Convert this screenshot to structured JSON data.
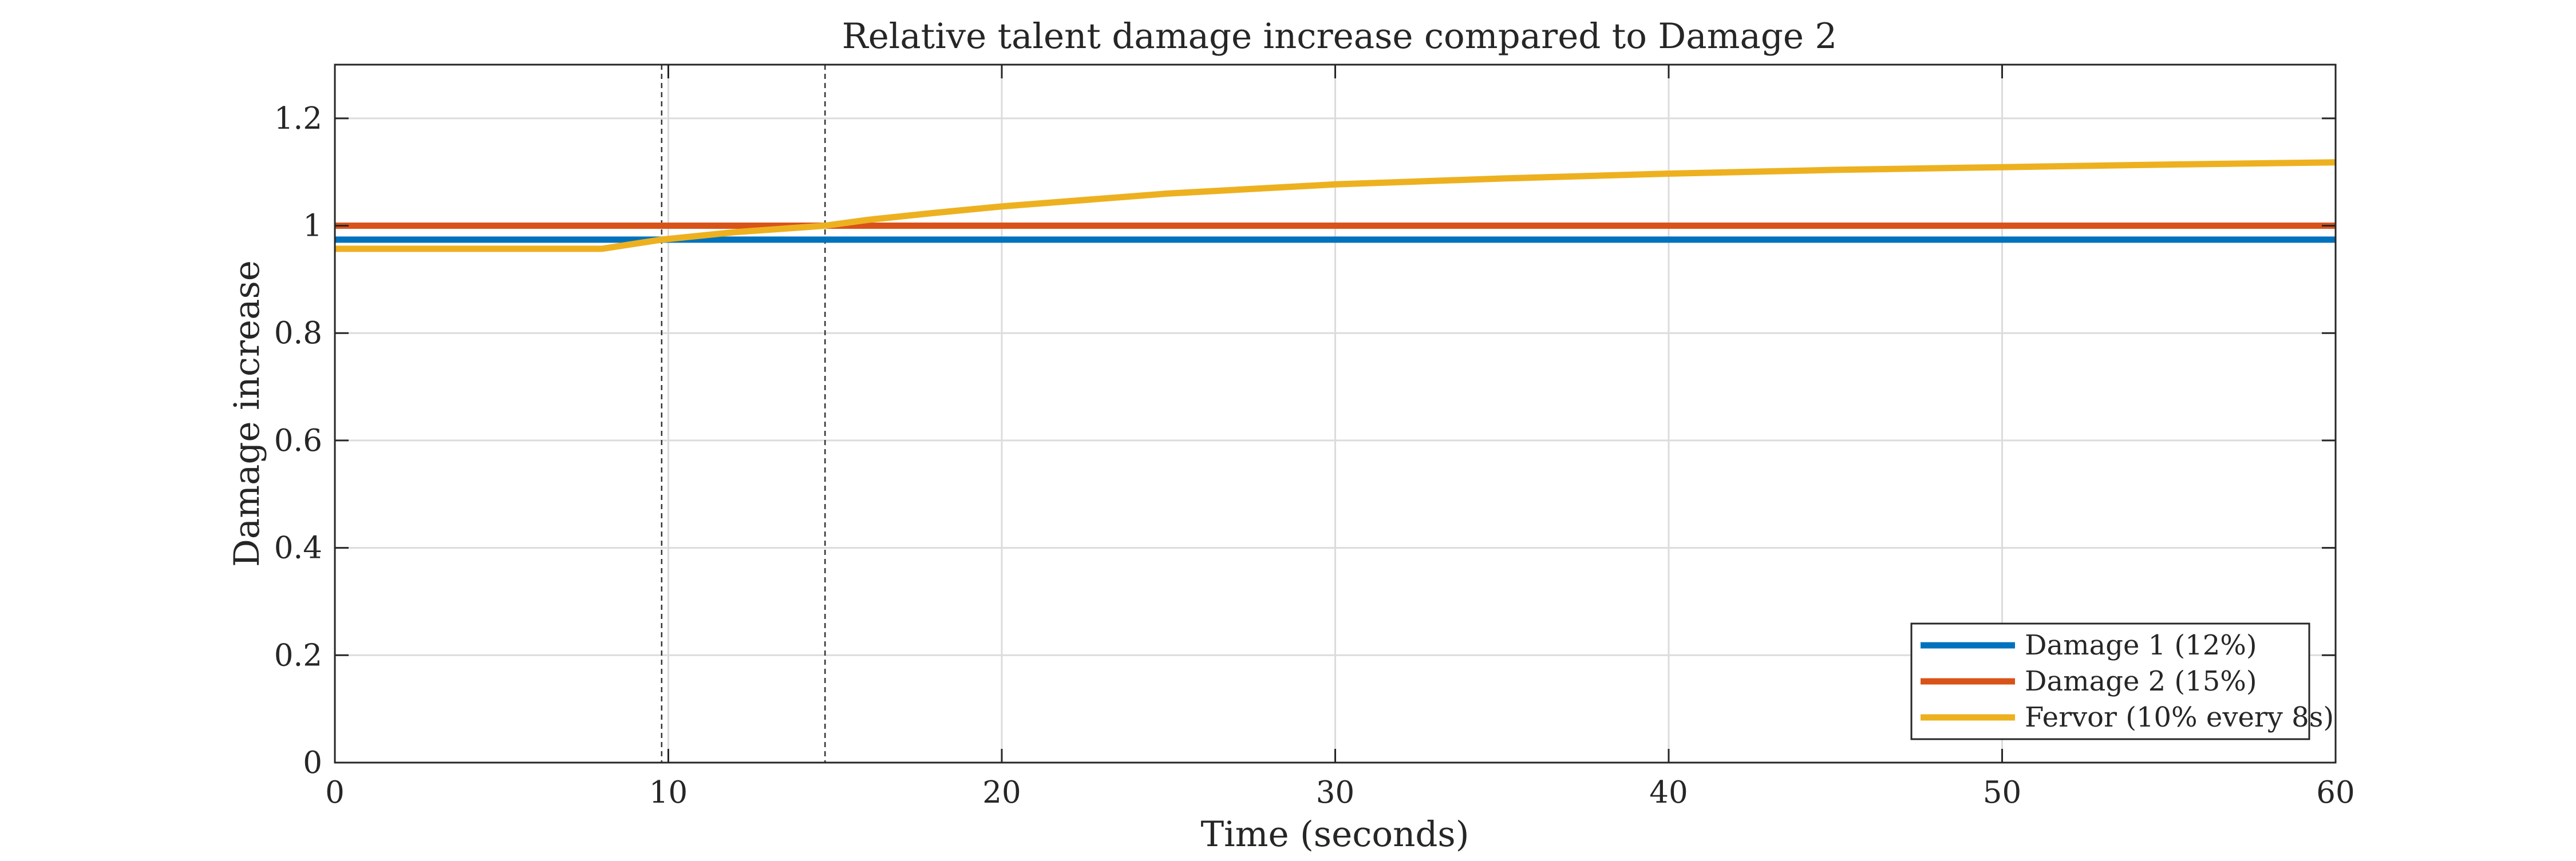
{
  "chart_data": {
    "type": "line",
    "title": "Relative talent damage increase compared to Damage 2",
    "xlabel": "Time (seconds)",
    "ylabel": "Damage increase",
    "xlim": [
      0,
      60
    ],
    "ylim": [
      0,
      1.3
    ],
    "x_ticks": [
      0,
      10,
      20,
      30,
      40,
      50,
      60
    ],
    "x_tick_labels": [
      "0",
      "10",
      "20",
      "30",
      "40",
      "50",
      "60"
    ],
    "y_ticks": [
      0,
      0.2,
      0.4,
      0.6,
      0.8,
      1,
      1.2
    ],
    "y_tick_labels": [
      "0",
      "0.2",
      "0.4",
      "0.6",
      "0.8",
      "1",
      "1.2"
    ],
    "grid": true,
    "legend_position": "bottom-right",
    "vertical_reference_lines": [
      9.8,
      14.7
    ],
    "series": [
      {
        "name": "Damage 1 (12%)",
        "color": "#0072BD",
        "x": [
          0,
          60
        ],
        "y": [
          0.974,
          0.974
        ]
      },
      {
        "name": "Damage 2 (15%)",
        "color": "#D95319",
        "x": [
          0,
          60
        ],
        "y": [
          1.0,
          1.0
        ]
      },
      {
        "name": "Fervor (10% every 8s)",
        "color": "#EDB120",
        "x": [
          0,
          8,
          9.8,
          12,
          14.7,
          16,
          18,
          20,
          25,
          30,
          35,
          40,
          45,
          50,
          55,
          60
        ],
        "y": [
          0.957,
          0.957,
          0.974,
          0.988,
          1.0,
          1.011,
          1.024,
          1.036,
          1.06,
          1.077,
          1.088,
          1.097,
          1.104,
          1.109,
          1.114,
          1.118
        ]
      }
    ]
  }
}
